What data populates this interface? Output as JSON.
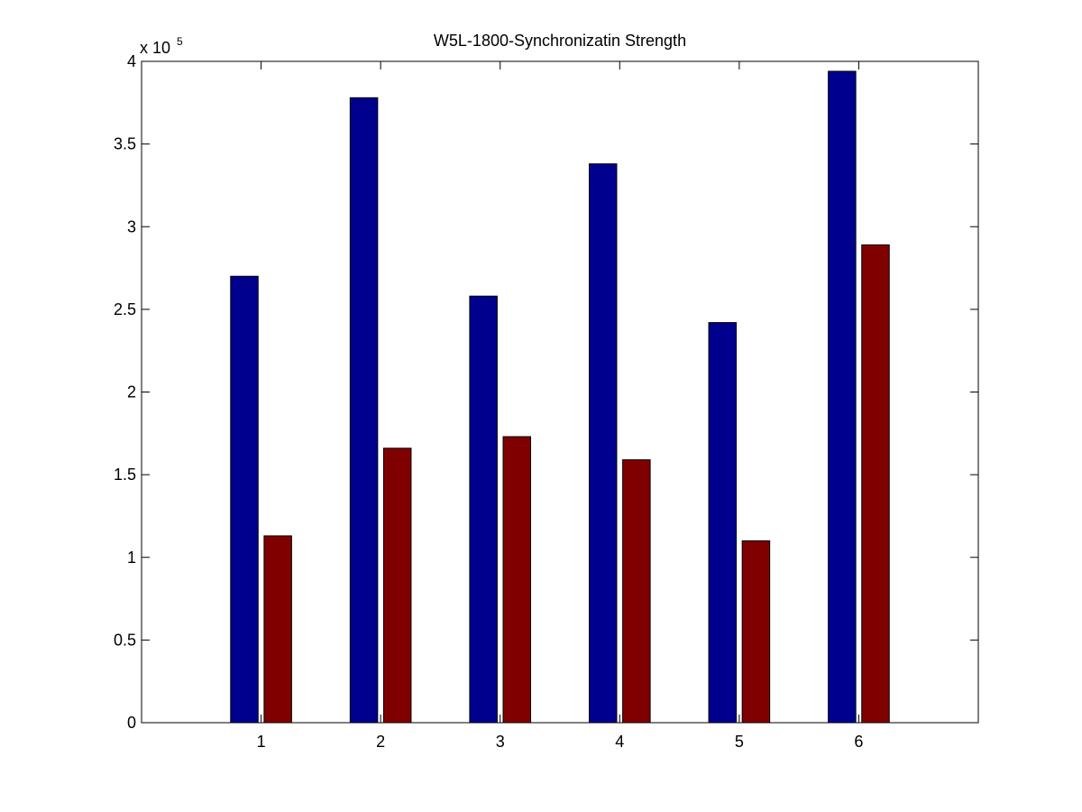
{
  "chart_data": {
    "type": "bar",
    "title": "W5L-1800-Synchronizatin Strength",
    "xlabel": "",
    "ylabel": "",
    "categories": [
      "1",
      "2",
      "3",
      "4",
      "5",
      "6"
    ],
    "series": [
      {
        "color": "#00008F",
        "values": [
          270000,
          378000,
          258000,
          338000,
          242000,
          394000
        ]
      },
      {
        "color": "#800000",
        "values": [
          113000,
          166000,
          173000,
          159000,
          110000,
          289000
        ]
      }
    ],
    "ylim": [
      0,
      400000
    ],
    "xlim": [
      0,
      7
    ],
    "yticks": [
      0,
      50000,
      100000,
      150000,
      200000,
      250000,
      300000,
      350000,
      400000
    ],
    "ytick_labels": [
      "0",
      "0.5",
      "1",
      "1.5",
      "2",
      "2.5",
      "3",
      "3.5",
      "4"
    ],
    "y_exponent_prefix": "x 10",
    "y_exponent_power": "5",
    "grid": false,
    "legend": "none"
  }
}
